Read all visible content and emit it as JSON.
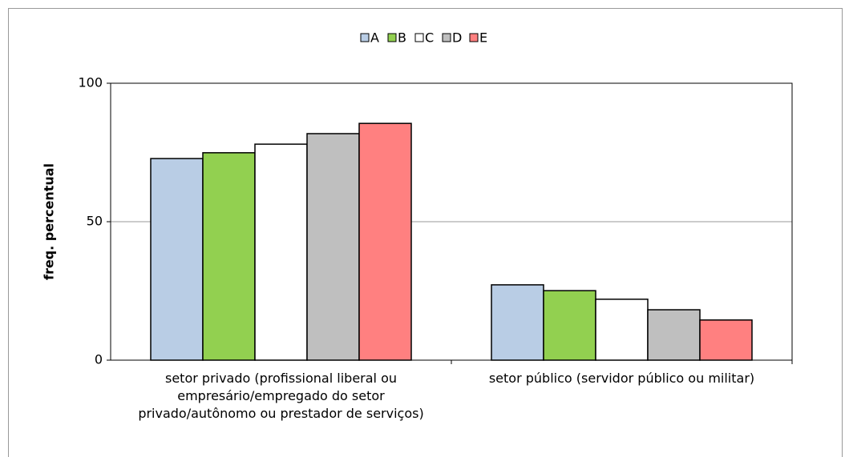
{
  "chart_data": {
    "type": "bar",
    "categories": [
      "setor privado (profissional liberal ou empresário/empregado do setor privado/autônomo ou prestador de serviços)",
      "setor público (servidor público ou militar)"
    ],
    "series": [
      {
        "name": "A",
        "color": "#b9cde5",
        "values": [
          72.8,
          27.2
        ]
      },
      {
        "name": "B",
        "color": "#92d050",
        "values": [
          74.9,
          25.1
        ]
      },
      {
        "name": "C",
        "color": "#ffffff",
        "values": [
          78,
          22
        ]
      },
      {
        "name": "D",
        "color": "#bfbfbf",
        "values": [
          81.8,
          18.2
        ]
      },
      {
        "name": "E",
        "color": "#ff8080",
        "values": [
          85.5,
          14.5
        ]
      }
    ],
    "ylabel": "freq. percentual",
    "ylim": [
      0,
      100
    ],
    "yticks": [
      0,
      50,
      100
    ],
    "grid": true,
    "legend": "top"
  }
}
